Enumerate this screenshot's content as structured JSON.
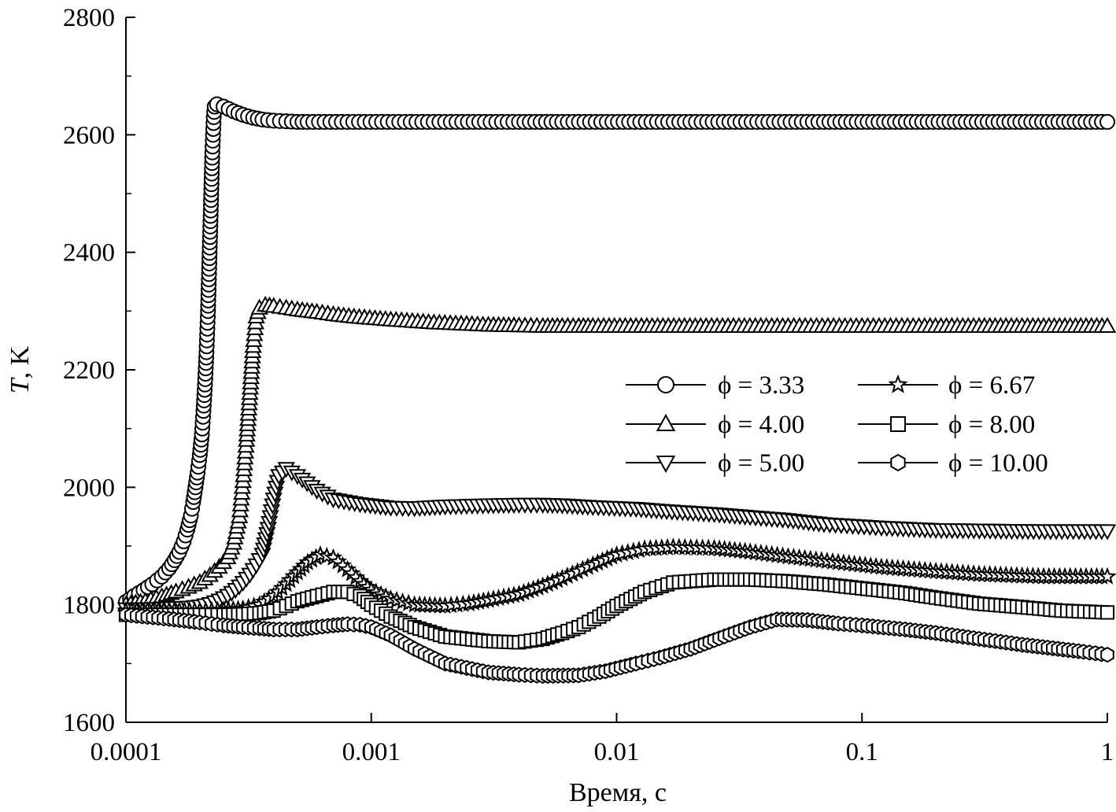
{
  "chart_data": {
    "type": "line",
    "title": "",
    "xlabel": "Время, с",
    "ylabel_italic": "T",
    "ylabel_rest": ", K",
    "xscale": "log",
    "xlim": [
      0.0001,
      1
    ],
    "ylim": [
      1600,
      2800
    ],
    "x_ticks": [
      0.0001,
      0.001,
      0.01,
      0.1,
      1
    ],
    "x_tick_labels": [
      "0.0001",
      "0.001",
      "0.01",
      "0.1",
      "1"
    ],
    "y_ticks": [
      1600,
      1800,
      2000,
      2200,
      2400,
      2600,
      2800
    ],
    "y_tick_labels": [
      "1600",
      "1800",
      "2000",
      "2200",
      "2400",
      "2600",
      "2800"
    ],
    "grid": false,
    "legend_position": "center-right",
    "series": [
      {
        "name": "ϕ = 3.33",
        "marker": "circle",
        "points": [
          [
            0.0001,
            1805
          ],
          [
            0.000108,
            1815
          ],
          [
            0.000118,
            1825
          ],
          [
            0.000128,
            1835
          ],
          [
            0.00014,
            1848
          ],
          [
            0.00015,
            1862
          ],
          [
            0.000158,
            1876
          ],
          [
            0.000165,
            1890
          ],
          [
            0.000172,
            1908
          ],
          [
            0.000178,
            1928
          ],
          [
            0.000184,
            1952
          ],
          [
            0.000188,
            1975
          ],
          [
            0.000192,
            2000
          ],
          [
            0.000196,
            2025
          ],
          [
            0.0002,
            2055
          ],
          [
            0.000204,
            2090
          ],
          [
            0.000207,
            2130
          ],
          [
            0.00021,
            2175
          ],
          [
            0.000213,
            2230
          ],
          [
            0.000216,
            2300
          ],
          [
            0.000219,
            2390
          ],
          [
            0.000222,
            2480
          ],
          [
            0.000225,
            2570
          ],
          [
            0.000228,
            2630
          ],
          [
            0.00023,
            2648
          ],
          [
            0.000235,
            2652
          ],
          [
            0.00025,
            2648
          ],
          [
            0.000275,
            2640
          ],
          [
            0.0003,
            2634
          ],
          [
            0.00033,
            2629
          ],
          [
            0.00036,
            2626
          ],
          [
            0.0004,
            2624
          ],
          [
            0.00045,
            2623
          ],
          [
            0.0005,
            2622
          ],
          [
            0.00055,
            2622
          ],
          [
            0.0008,
            2622
          ],
          [
            0.0013,
            2622
          ],
          [
            0.002,
            2622
          ],
          [
            0.004,
            2622
          ],
          [
            0.006,
            2622
          ],
          [
            0.018,
            2622
          ],
          [
            0.07,
            2622
          ],
          [
            0.42,
            2622
          ],
          [
            1,
            2622
          ]
        ]
      },
      {
        "name": "ϕ = 4.00",
        "marker": "triangle-up",
        "points": [
          [
            0.0001,
            1800
          ],
          [
            0.00012,
            1806
          ],
          [
            0.00014,
            1814
          ],
          [
            0.00016,
            1822
          ],
          [
            0.00018,
            1830
          ],
          [
            0.0002,
            1838
          ],
          [
            0.00022,
            1850
          ],
          [
            0.00024,
            1864
          ],
          [
            0.00026,
            1880
          ],
          [
            0.000275,
            1905
          ],
          [
            0.00029,
            1950
          ],
          [
            0.0003,
            2010
          ],
          [
            0.00031,
            2080
          ],
          [
            0.00032,
            2160
          ],
          [
            0.00033,
            2240
          ],
          [
            0.00034,
            2290
          ],
          [
            0.00035,
            2305
          ],
          [
            0.00037,
            2310
          ],
          [
            0.0004,
            2308
          ],
          [
            0.00045,
            2305
          ],
          [
            0.0005,
            2302
          ],
          [
            0.0006,
            2298
          ],
          [
            0.0007,
            2294
          ],
          [
            0.00085,
            2290
          ],
          [
            0.0012,
            2285
          ],
          [
            0.0018,
            2280
          ],
          [
            0.003,
            2276
          ],
          [
            0.004,
            2275
          ],
          [
            0.005,
            2274
          ],
          [
            0.006,
            2274
          ],
          [
            0.007,
            2274
          ],
          [
            0.008,
            2274
          ],
          [
            0.012,
            2274
          ],
          [
            0.022,
            2274
          ],
          [
            0.05,
            2274
          ],
          [
            0.1,
            2274
          ],
          [
            0.18,
            2274
          ],
          [
            0.3,
            2274
          ],
          [
            0.55,
            2274
          ],
          [
            1,
            2274
          ]
        ]
      },
      {
        "name": "ϕ = 5.00",
        "marker": "triangle-down",
        "points": [
          [
            0.0001,
            1793
          ],
          [
            0.00012,
            1793
          ],
          [
            0.00014,
            1794
          ],
          [
            0.00016,
            1795
          ],
          [
            0.00018,
            1796
          ],
          [
            0.0002,
            1798
          ],
          [
            0.00022,
            1802
          ],
          [
            0.00024,
            1808
          ],
          [
            0.00026,
            1816
          ],
          [
            0.00028,
            1826
          ],
          [
            0.0003,
            1838
          ],
          [
            0.00032,
            1852
          ],
          [
            0.00034,
            1868
          ],
          [
            0.00036,
            1886
          ],
          [
            0.00038,
            1930
          ],
          [
            0.0004,
            1980
          ],
          [
            0.00042,
            2020
          ],
          [
            0.00045,
            2032
          ],
          [
            0.0005,
            2020
          ],
          [
            0.0006,
            1995
          ],
          [
            0.0007,
            1980
          ],
          [
            0.0009,
            1972
          ],
          [
            0.0012,
            1966
          ],
          [
            0.0015,
            1965
          ],
          [
            0.002,
            1968
          ],
          [
            0.003,
            1970
          ],
          [
            0.004,
            1971
          ],
          [
            0.005,
            1971
          ],
          [
            0.006,
            1970
          ],
          [
            0.008,
            1967
          ],
          [
            0.012,
            1964
          ],
          [
            0.016,
            1960
          ],
          [
            0.025,
            1955
          ],
          [
            0.035,
            1950
          ],
          [
            0.05,
            1945
          ],
          [
            0.07,
            1938
          ],
          [
            0.12,
            1932
          ],
          [
            0.2,
            1928
          ],
          [
            0.5,
            1926
          ],
          [
            1,
            1926
          ]
        ]
      },
      {
        "name": "ϕ = 6.67",
        "marker": "star",
        "points": [
          [
            0.0001,
            1790
          ],
          [
            0.00015,
            1790
          ],
          [
            0.0002,
            1790
          ],
          [
            0.00025,
            1791
          ],
          [
            0.0003,
            1793
          ],
          [
            0.00035,
            1800
          ],
          [
            0.0004,
            1815
          ],
          [
            0.00045,
            1835
          ],
          [
            0.0005,
            1855
          ],
          [
            0.00055,
            1872
          ],
          [
            0.00062,
            1885
          ],
          [
            0.0007,
            1880
          ],
          [
            0.0008,
            1860
          ],
          [
            0.0009,
            1840
          ],
          [
            0.001,
            1825
          ],
          [
            0.0012,
            1810
          ],
          [
            0.0015,
            1800
          ],
          [
            0.002,
            1798
          ],
          [
            0.0025,
            1802
          ],
          [
            0.003,
            1808
          ],
          [
            0.004,
            1818
          ],
          [
            0.005,
            1832
          ],
          [
            0.006,
            1845
          ],
          [
            0.008,
            1868
          ],
          [
            0.01,
            1885
          ],
          [
            0.013,
            1895
          ],
          [
            0.017,
            1898
          ],
          [
            0.025,
            1896
          ],
          [
            0.035,
            1890
          ],
          [
            0.05,
            1882
          ],
          [
            0.08,
            1872
          ],
          [
            0.12,
            1864
          ],
          [
            0.2,
            1857
          ],
          [
            0.3,
            1852
          ],
          [
            0.55,
            1848
          ],
          [
            1,
            1848
          ]
        ]
      },
      {
        "name": "ϕ = 8.00",
        "marker": "square",
        "points": [
          [
            0.0001,
            1783
          ],
          [
            0.00015,
            1783
          ],
          [
            0.0002,
            1783
          ],
          [
            0.00025,
            1783
          ],
          [
            0.0003,
            1784
          ],
          [
            0.00035,
            1786
          ],
          [
            0.0004,
            1790
          ],
          [
            0.00045,
            1798
          ],
          [
            0.0005,
            1806
          ],
          [
            0.0006,
            1815
          ],
          [
            0.0007,
            1822
          ],
          [
            0.0008,
            1822
          ],
          [
            0.0009,
            1815
          ],
          [
            0.001,
            1800
          ],
          [
            0.0012,
            1780
          ],
          [
            0.0015,
            1762
          ],
          [
            0.002,
            1746
          ],
          [
            0.003,
            1738
          ],
          [
            0.004,
            1736
          ],
          [
            0.005,
            1742
          ],
          [
            0.006,
            1752
          ],
          [
            0.007,
            1762
          ],
          [
            0.0085,
            1780
          ],
          [
            0.01,
            1798
          ],
          [
            0.013,
            1822
          ],
          [
            0.017,
            1838
          ],
          [
            0.025,
            1843
          ],
          [
            0.035,
            1843
          ],
          [
            0.05,
            1840
          ],
          [
            0.07,
            1835
          ],
          [
            0.1,
            1828
          ],
          [
            0.15,
            1820
          ],
          [
            0.2,
            1812
          ],
          [
            0.3,
            1802
          ],
          [
            0.45,
            1796
          ],
          [
            0.65,
            1790
          ],
          [
            1,
            1787
          ]
        ]
      },
      {
        "name": "ϕ = 10.00",
        "marker": "hexagon",
        "points": [
          [
            0.0001,
            1783
          ],
          [
            0.00015,
            1776
          ],
          [
            0.0002,
            1770
          ],
          [
            0.00025,
            1765
          ],
          [
            0.0003,
            1762
          ],
          [
            0.00035,
            1760
          ],
          [
            0.0004,
            1758
          ],
          [
            0.0005,
            1758
          ],
          [
            0.0006,
            1762
          ],
          [
            0.0007,
            1765
          ],
          [
            0.0008,
            1767
          ],
          [
            0.0009,
            1766
          ],
          [
            0.001,
            1762
          ],
          [
            0.0012,
            1748
          ],
          [
            0.0015,
            1725
          ],
          [
            0.002,
            1700
          ],
          [
            0.003,
            1685
          ],
          [
            0.004,
            1681
          ],
          [
            0.005,
            1679
          ],
          [
            0.007,
            1680
          ],
          [
            0.009,
            1687
          ],
          [
            0.012,
            1700
          ],
          [
            0.015,
            1710
          ],
          [
            0.02,
            1725
          ],
          [
            0.025,
            1740
          ],
          [
            0.035,
            1762
          ],
          [
            0.045,
            1775
          ],
          [
            0.06,
            1774
          ],
          [
            0.08,
            1768
          ],
          [
            0.1,
            1765
          ],
          [
            0.15,
            1758
          ],
          [
            0.2,
            1752
          ],
          [
            0.3,
            1742
          ],
          [
            0.45,
            1732
          ],
          [
            0.6,
            1726
          ],
          [
            0.8,
            1720
          ],
          [
            1,
            1715
          ]
        ]
      }
    ]
  }
}
